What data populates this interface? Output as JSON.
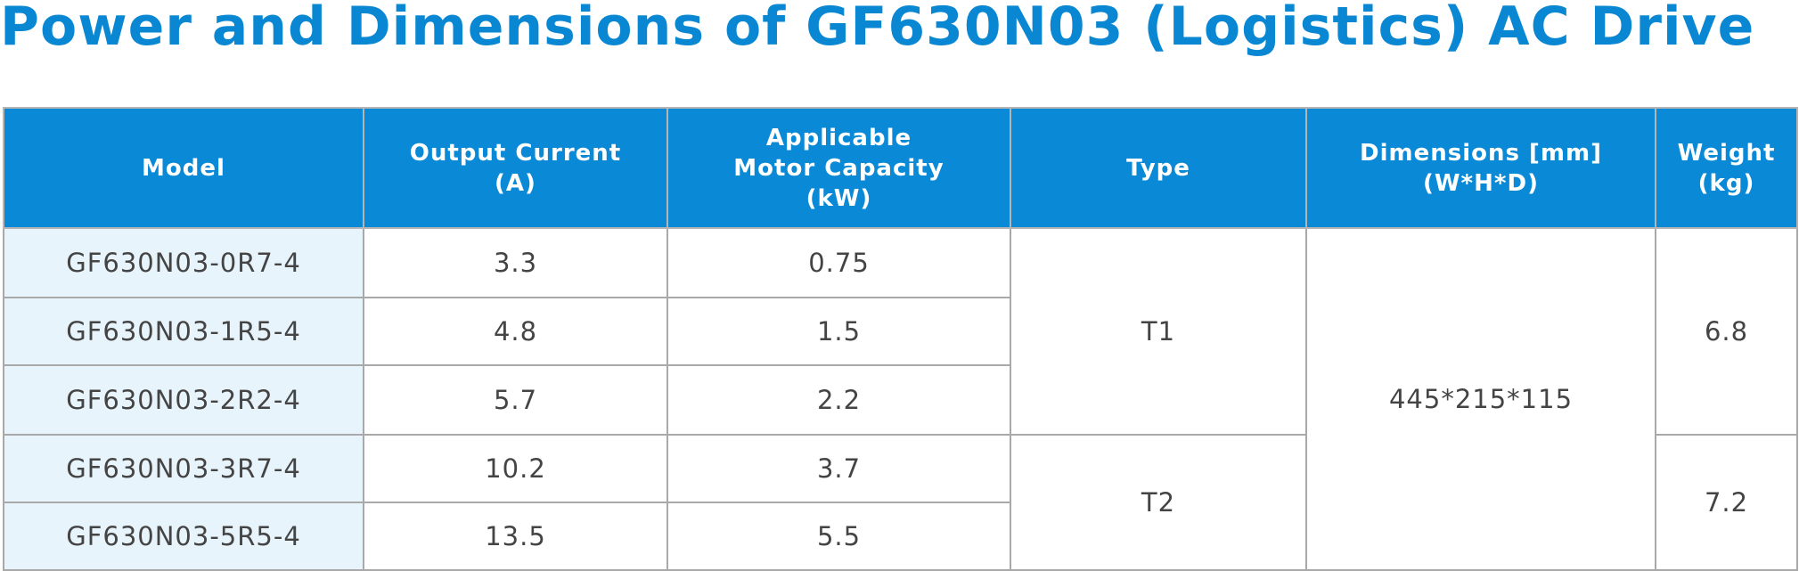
{
  "title": "Power and Dimensions of GF630N03 (Logistics) AC Drive",
  "table": {
    "header": [
      [
        "Model"
      ],
      [
        "Output Current",
        "(A)"
      ],
      [
        "Applicable",
        "Motor Capacity",
        "(kW)"
      ],
      [
        "Type"
      ],
      [
        "Dimensions [mm]",
        "(W*H*D)"
      ],
      [
        "Weight",
        "(kg)"
      ]
    ],
    "rows": [
      [
        "GF630N03-0R7-4",
        "3.3",
        "0.75",
        "T1",
        "445*215*115",
        "6.8"
      ],
      [
        "GF630N03-1R5-4",
        "4.8",
        "1.5"
      ],
      [
        "GF630N03-2R2-4",
        "5.7",
        "2.2"
      ],
      [
        "GF630N03-3R7-4",
        "10.2",
        "3.7",
        "T2",
        "7.2"
      ],
      [
        "GF630N03-5R5-4",
        "13.5",
        "5.5"
      ]
    ]
  }
}
